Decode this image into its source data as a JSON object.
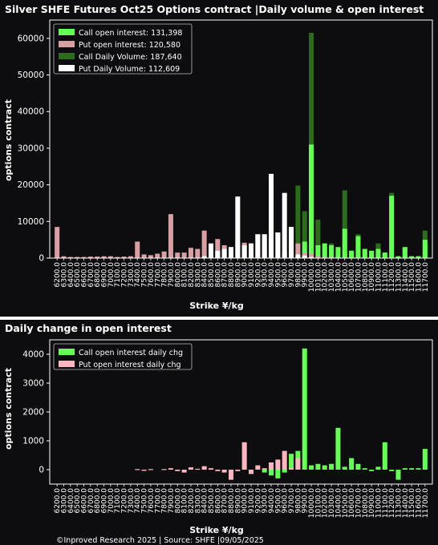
{
  "chart_data": [
    {
      "type": "bar",
      "title": "Silver SHFE Futures Oct25 Options contract |Daily volume & open interest",
      "xlabel": "Strike ¥/kg",
      "ylabel": "options contract",
      "ylim": [
        0,
        65000
      ],
      "yticks": [
        0,
        10000,
        20000,
        30000,
        40000,
        50000,
        60000
      ],
      "legend_position": "top-left",
      "categories": [
        "6200.0",
        "6300.0",
        "6400.0",
        "6500.0",
        "6600.0",
        "6700.0",
        "6800.0",
        "6900.0",
        "7000.0",
        "7100.0",
        "7200.0",
        "7300.0",
        "7400.0",
        "7500.0",
        "7600.0",
        "7700.0",
        "7800.0",
        "7900.0",
        "8000.0",
        "8100.0",
        "8200.0",
        "8300.0",
        "8400.0",
        "8500.0",
        "8600.0",
        "8700.0",
        "8800.0",
        "8900.0",
        "9000.0",
        "9100.0",
        "9200.0",
        "9300.0",
        "9400.0",
        "9500.0",
        "9600.0",
        "9700.0",
        "9800.0",
        "9900.0",
        "10000.0",
        "10100.0",
        "10200.0",
        "10300.0",
        "10400.0",
        "10500.0",
        "10600.0",
        "10700.0",
        "10800.0",
        "10900.0",
        "11000.0",
        "11100.0",
        "11200.0",
        "11300.0",
        "11400.0",
        "11500.0",
        "11600.0",
        "11700.0"
      ],
      "series": [
        {
          "name": "Call open interest: 131,398",
          "color": "#66ff55",
          "values": [
            0,
            0,
            0,
            0,
            0,
            0,
            0,
            0,
            0,
            0,
            0,
            0,
            0,
            0,
            0,
            0,
            0,
            0,
            0,
            0,
            0,
            0,
            0,
            0,
            0,
            0,
            0,
            0,
            0,
            0,
            0,
            0,
            0,
            0,
            0,
            0,
            500,
            4500,
            31000,
            3500,
            4000,
            3500,
            3000,
            8000,
            2000,
            6000,
            2500,
            2000,
            2500,
            1500,
            17000,
            500,
            3000,
            500,
            500,
            5000
          ]
        },
        {
          "name": "Put open interest: 120,580",
          "color": "#d9a0a4",
          "values": [
            8500,
            500,
            300,
            300,
            300,
            400,
            400,
            500,
            500,
            300,
            400,
            500,
            4500,
            1000,
            800,
            1200,
            1800,
            12000,
            1500,
            1500,
            2800,
            2500,
            7500,
            3000,
            5200,
            3500,
            3000,
            4500,
            4200,
            4000,
            6500,
            6500,
            7500,
            7000,
            1500,
            8500,
            4000,
            1500,
            1200,
            500,
            300,
            300,
            200,
            200,
            100,
            100,
            100,
            100,
            100,
            100,
            100,
            0,
            0,
            0,
            0,
            0
          ]
        },
        {
          "name": "Call Daily Volume: 187,640",
          "color": "#2d6b1e",
          "values": [
            0,
            0,
            0,
            0,
            0,
            0,
            0,
            0,
            0,
            0,
            0,
            0,
            0,
            0,
            0,
            0,
            0,
            0,
            0,
            0,
            0,
            0,
            0,
            0,
            0,
            0,
            0,
            0,
            0,
            0,
            0,
            0,
            0,
            0,
            0,
            0,
            19800,
            12800,
            61500,
            10500,
            4000,
            4000,
            3000,
            18500,
            2000,
            6500,
            2500,
            2000,
            4000,
            1500,
            17800,
            500,
            3000,
            500,
            500,
            7500
          ]
        },
        {
          "name": "Put Daily Volume: 112,609",
          "color": "#ffffff",
          "values": [
            0,
            0,
            0,
            0,
            0,
            0,
            0,
            0,
            0,
            0,
            0,
            0,
            0,
            0,
            0,
            0,
            0,
            0,
            0,
            0,
            0,
            0,
            500,
            4000,
            2000,
            2500,
            3000,
            16800,
            3500,
            4000,
            6500,
            6500,
            23000,
            7000,
            17800,
            8500,
            1000,
            700,
            300,
            0,
            0,
            0,
            0,
            0,
            0,
            0,
            0,
            0,
            0,
            0,
            0,
            0,
            0,
            0,
            0,
            0
          ]
        }
      ]
    },
    {
      "type": "bar",
      "title": "Daily change in open interest",
      "xlabel": "Strike ¥/kg",
      "ylabel": "options contract",
      "ylim": [
        -500,
        4500
      ],
      "yticks": [
        0,
        1000,
        2000,
        3000,
        4000
      ],
      "legend_position": "top-left",
      "categories": [
        "6200.0",
        "6300.0",
        "6400.0",
        "6500.0",
        "6600.0",
        "6700.0",
        "6800.0",
        "6900.0",
        "7000.0",
        "7100.0",
        "7200.0",
        "7300.0",
        "7400.0",
        "7500.0",
        "7600.0",
        "7700.0",
        "7800.0",
        "7900.0",
        "8000.0",
        "8100.0",
        "8200.0",
        "8300.0",
        "8400.0",
        "8500.0",
        "8600.0",
        "8700.0",
        "8800.0",
        "8900.0",
        "9000.0",
        "9100.0",
        "9200.0",
        "9300.0",
        "9400.0",
        "9500.0",
        "9600.0",
        "9700.0",
        "9800.0",
        "9900.0",
        "10000.0",
        "10100.0",
        "10200.0",
        "10300.0",
        "10400.0",
        "10500.0",
        "10600.0",
        "10700.0",
        "10800.0",
        "10900.0",
        "11000.0",
        "11100.0",
        "11200.0",
        "11300.0",
        "11400.0",
        "11500.0",
        "11600.0",
        "11700.0"
      ],
      "series": [
        {
          "name": "Call open interest daily chg",
          "color": "#66ff55",
          "values": [
            0,
            0,
            0,
            0,
            0,
            0,
            0,
            0,
            0,
            0,
            0,
            0,
            0,
            0,
            0,
            0,
            0,
            0,
            0,
            0,
            0,
            0,
            0,
            0,
            0,
            0,
            0,
            0,
            0,
            0,
            0,
            -100,
            -200,
            -300,
            -100,
            550,
            650,
            4200,
            150,
            200,
            150,
            200,
            1450,
            100,
            400,
            200,
            50,
            -50,
            100,
            950,
            -50,
            -350,
            50,
            50,
            50,
            720
          ]
        },
        {
          "name": "Put open interest daily chg",
          "color": "#ffb6c1",
          "values": [
            0,
            0,
            0,
            0,
            0,
            0,
            0,
            0,
            0,
            0,
            0,
            0,
            20,
            -40,
            20,
            0,
            20,
            50,
            -50,
            -100,
            80,
            30,
            120,
            50,
            -50,
            -100,
            -350,
            -50,
            950,
            -150,
            150,
            50,
            250,
            350,
            650,
            50,
            400,
            0,
            0,
            0,
            0,
            0,
            0,
            0,
            0,
            0,
            0,
            0,
            0,
            0,
            0,
            0,
            0,
            0,
            0,
            0
          ]
        }
      ]
    }
  ],
  "footer": "©Inproved Research 2025 | Source: SHFE |09/05/2025"
}
